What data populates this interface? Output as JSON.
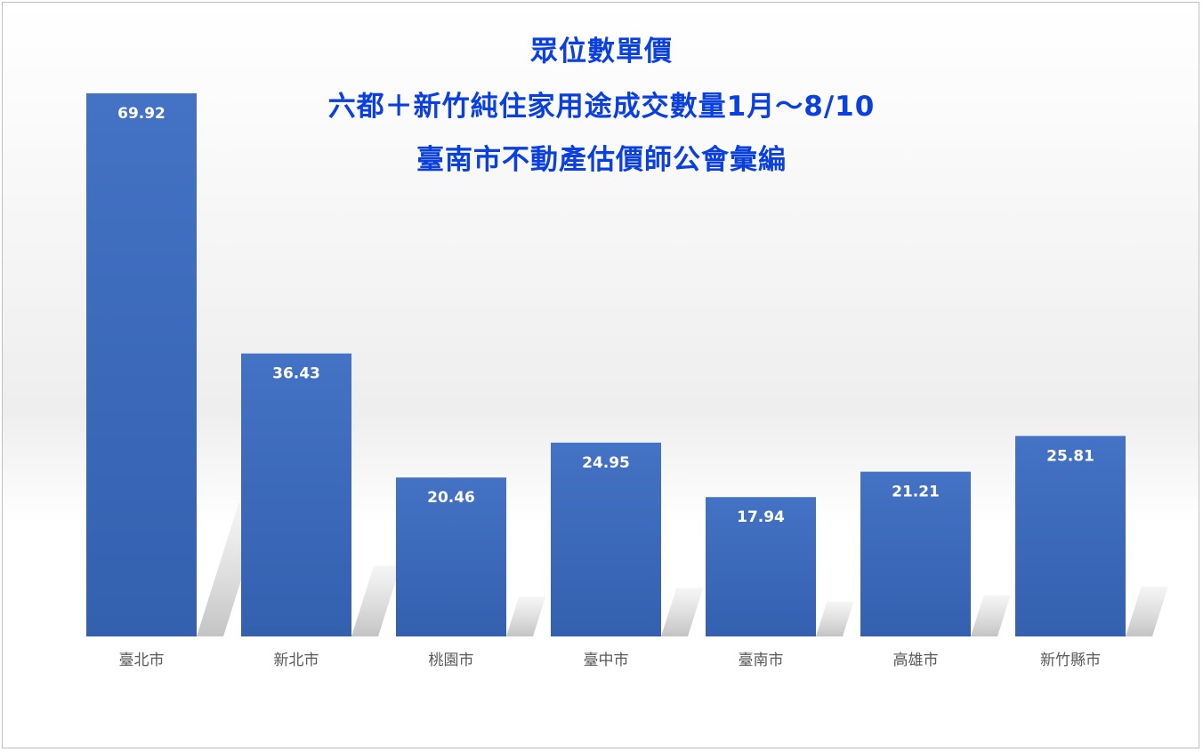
{
  "chart_data": {
    "type": "bar",
    "title_lines": [
      "眾位數單價",
      "六都＋新竹純住家用途成交數量1月～8/10",
      "臺南市不動產估價師公會彙編"
    ],
    "categories": [
      "臺北市",
      "新北市",
      "桃園市",
      "臺中市",
      "臺南市",
      "高雄市",
      "新竹縣市"
    ],
    "values": [
      69.92,
      36.43,
      20.46,
      24.95,
      17.94,
      21.21,
      25.81
    ],
    "value_labels": [
      "69.92",
      "36.43",
      "20.46",
      "24.95",
      "17.94",
      "21.21",
      "25.81"
    ],
    "xlabel": "",
    "ylabel": "",
    "ylim": [
      0,
      69.92
    ],
    "grid": false,
    "legend": "none",
    "colors": {
      "bar_top": "#4472c4",
      "bar_bottom": "#3460b0",
      "title": "#0a3fe0",
      "label": "#ffffff",
      "axis_text": "#595959"
    }
  }
}
